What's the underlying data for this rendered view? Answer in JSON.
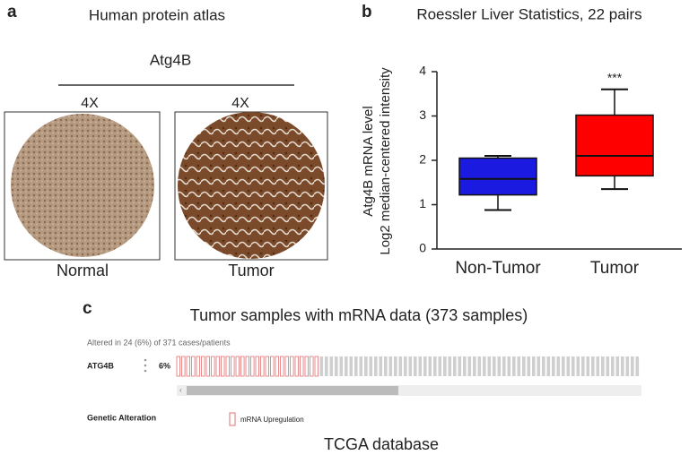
{
  "panel_a": {
    "label": "a",
    "title": "Human protein atlas",
    "gene": "Atg4B",
    "magnifications": [
      "4X",
      "4X"
    ],
    "samples": [
      "Normal",
      "Tumor"
    ]
  },
  "chart_data": {
    "type": "box",
    "label": "b",
    "title": "Roessler Liver Statistics, 22 pairs",
    "y_label_lines": [
      "Atg4B mRNA level",
      "Log2 median-centered intensity"
    ],
    "categories": [
      "Non-Tumor",
      "Tumor"
    ],
    "boxes": [
      {
        "color": "#1a1ae0",
        "whislo": 0.88,
        "q1": 1.22,
        "median": 1.58,
        "q3": 2.05,
        "whishi": 2.1
      },
      {
        "color": "#ff0000",
        "whislo": 1.35,
        "q1": 1.65,
        "median": 2.1,
        "q3": 3.02,
        "whishi": 3.6
      }
    ],
    "annotation": "***",
    "ylim": [
      0,
      4
    ],
    "yticks": [
      0,
      1,
      2,
      3,
      4
    ]
  },
  "panel_c": {
    "label": "c",
    "title": "Tumor samples with mRNA data (373 samples)",
    "summary": "Altered in 24 (6%) of 371 cases/patients",
    "gene": "ATG4B",
    "percent": "6%",
    "legend_title": "Genetic Alteration",
    "legend_item": "mRNA Upregulation",
    "caption": "TCGA database"
  }
}
